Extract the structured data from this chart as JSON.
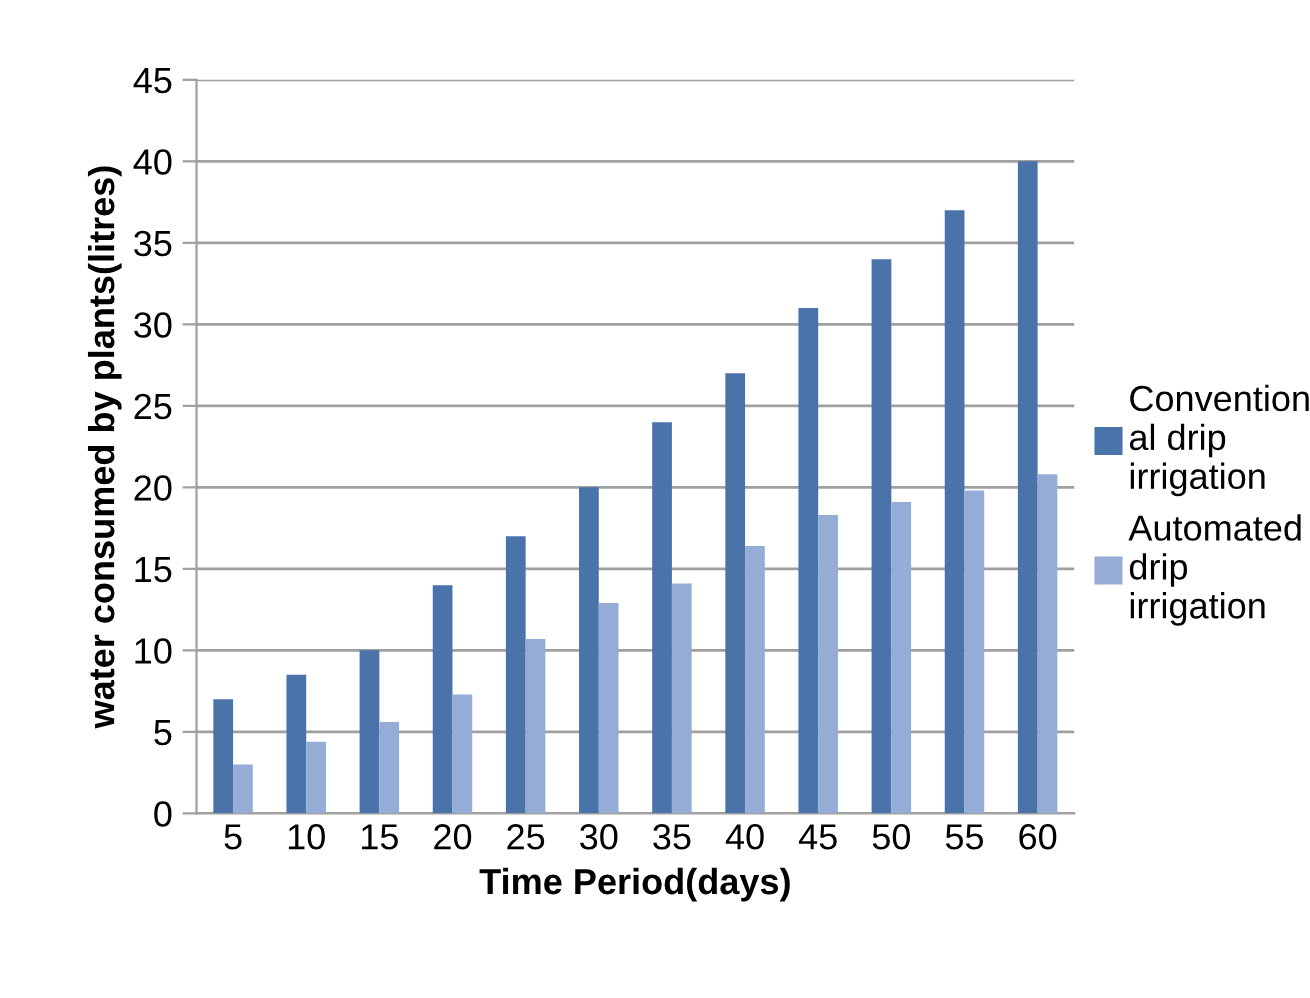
{
  "chart_data": {
    "type": "bar",
    "xlabel": "Time Period(days)",
    "ylabel": "water consumed by plants(litres)",
    "categories": [
      "5",
      "10",
      "15",
      "20",
      "25",
      "30",
      "35",
      "40",
      "45",
      "50",
      "55",
      "60"
    ],
    "series": [
      {
        "name": "Convention\nal drip\nirrigation",
        "color": "#4a73aa",
        "values": [
          7,
          8.5,
          10,
          14,
          17,
          20,
          24,
          27,
          31,
          34,
          37,
          40
        ]
      },
      {
        "name": "Automated\ndrip\nirrigation",
        "color": "#95acd6",
        "values": [
          3,
          4.4,
          5.6,
          7.3,
          10.7,
          12.9,
          14.1,
          16.4,
          18.3,
          19.1,
          19.8,
          20.8
        ]
      }
    ],
    "ylim": [
      0,
      45
    ],
    "yticks": [
      0,
      5,
      10,
      15,
      20,
      25,
      30,
      35,
      40,
      45
    ],
    "grid": "y",
    "legend": "right"
  }
}
